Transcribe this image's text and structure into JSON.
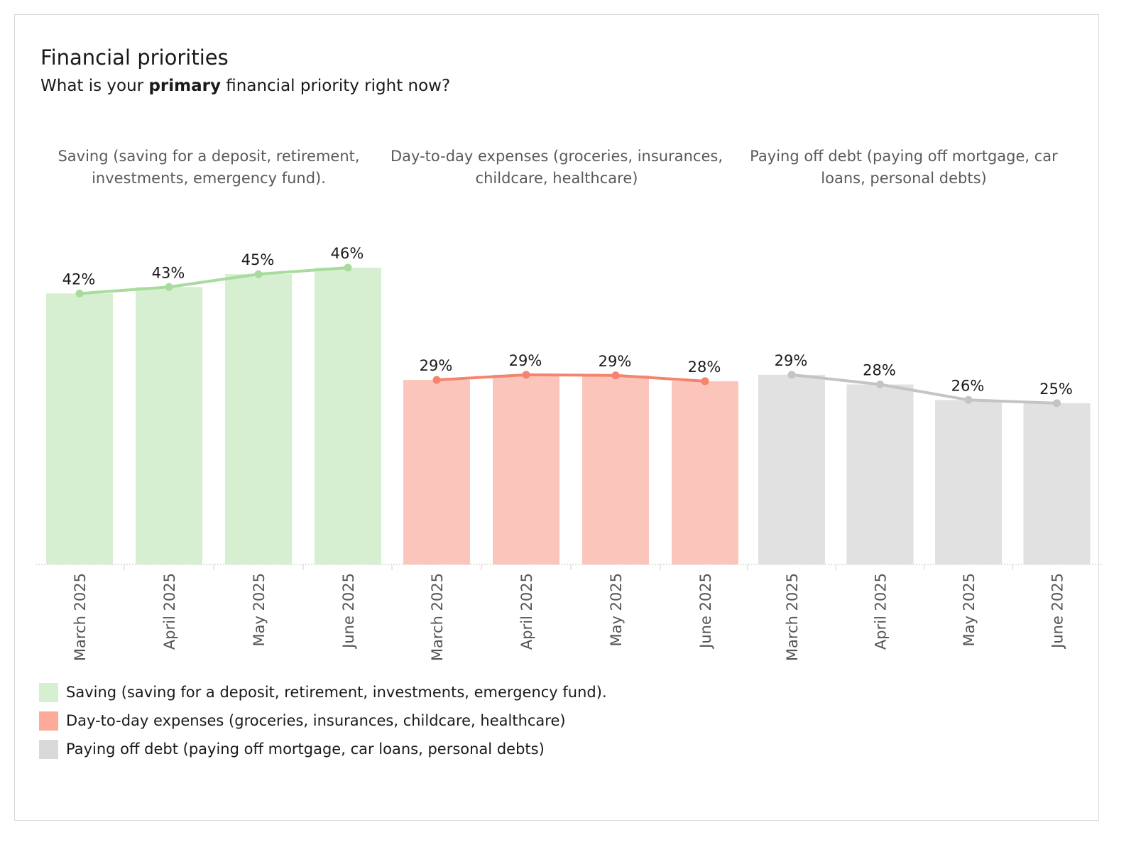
{
  "header": {
    "title": "Financial priorities",
    "subtitle_pre": "What is your ",
    "subtitle_bold": "primary",
    "subtitle_post": " financial priority right now?"
  },
  "colors": {
    "saving_bar": "#d5efd0",
    "saving_line": "#a8dc9c",
    "expenses_bar": "#fcc5bb",
    "expenses_line": "#f5846f",
    "debt_bar": "#e1e1e1",
    "debt_line": "#c4c4c4"
  },
  "chart_data": {
    "type": "bar",
    "panels": [
      {
        "title": "Saving (saving for a deposit, retirement, investments, emergency fund).",
        "categories": [
          "March 2025",
          "April 2025",
          "May 2025",
          "June 2025"
        ],
        "values": [
          42,
          43,
          45,
          46
        ],
        "labels": [
          "42%",
          "43%",
          "45%",
          "46%"
        ],
        "color_key": "saving"
      },
      {
        "title": "Day-to-day expenses (groceries, insurances, childcare, healthcare)",
        "categories": [
          "March 2025",
          "April 2025",
          "May 2025",
          "June 2025"
        ],
        "values": [
          28.6,
          29.4,
          29.3,
          28.4
        ],
        "labels": [
          "29%",
          "29%",
          "29%",
          "28%"
        ],
        "color_key": "expenses"
      },
      {
        "title": "Paying off debt (paying off mortgage, car loans, personal debts)",
        "categories": [
          "March 2025",
          "April 2025",
          "May 2025",
          "June 2025"
        ],
        "values": [
          29.4,
          27.9,
          25.5,
          25.0
        ],
        "labels": [
          "29%",
          "28%",
          "26%",
          "25%"
        ],
        "color_key": "debt"
      }
    ],
    "ylim": [
      0,
      47
    ],
    "grid": false,
    "legend_position": "bottom-left",
    "legend": [
      "Saving (saving for a deposit, retirement, investments, emergency fund).",
      "Day-to-day expenses (groceries, insurances, childcare, healthcare)",
      "Paying off debt (paying off mortgage, car loans, personal debts)"
    ]
  }
}
